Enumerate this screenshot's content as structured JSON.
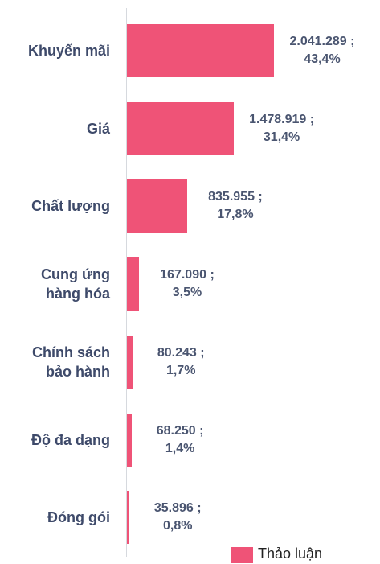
{
  "chart_data": {
    "type": "hbar",
    "categories": [
      "Khuyến mãi",
      "Giá",
      "Chất lượng",
      "Cung ứng hàng hóa",
      "Chính sách bảo hành",
      "Độ đa dạng",
      "Đóng gói"
    ],
    "series": [
      {
        "name": "Thảo luận",
        "color": "#ef5377",
        "values": [
          2041289,
          1478919,
          835955,
          167090,
          80243,
          68250,
          35896
        ],
        "value_labels": [
          "2.041.289 ; 43,4%",
          "1.478.919 ; 31,4%",
          "835.955 ; 17,8%",
          "167.090 ; 3,5%",
          "80.243 ; 1,7%",
          "68.250 ; 1,4%",
          "35.896 ; 0,8%"
        ]
      }
    ],
    "legend": "bottom-right"
  }
}
